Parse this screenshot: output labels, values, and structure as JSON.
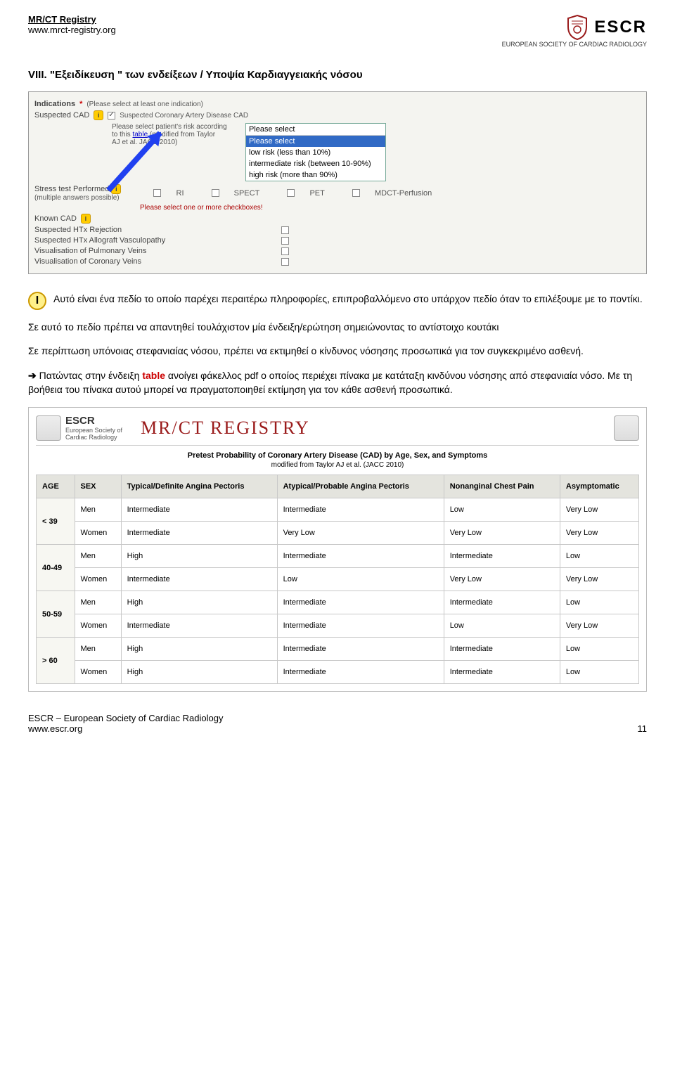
{
  "header": {
    "title": "MR/CT Registry",
    "url": "www.mrct-registry.org",
    "logo_text": "ESCR",
    "logo_sub": "EUROPEAN SOCIETY OF CARDIAC RADIOLOGY"
  },
  "section": {
    "number": "VIII.",
    "title": "\"Εξειδίκευση \" των ενδείξεων / Υποψία Καρδιαγγειακής νόσου"
  },
  "form": {
    "indications_label": "Indications",
    "indications_hint": "(Please select at least one indication)",
    "suspected_cad": "Suspected CAD",
    "suspected_cad_desc": "Suspected Coronary Artery Disease CAD",
    "risk_text1": "Please select patient's risk according",
    "risk_text2": "to this table (modified from Taylor",
    "risk_text3": "AJ et al. JACC 2010)",
    "dd_head": "Please select",
    "dd_sel": "Please select",
    "dd_o1": "low risk (less than 10%)",
    "dd_o2": "intermediate risk (between 10-90%)",
    "dd_o3": "high risk (more than 90%)",
    "stress_label": "Stress test Performed",
    "stress_sub": "(multiple answers possible)",
    "stress_warn": "Please select one or more checkboxes!",
    "opt_ri": "RI",
    "opt_spect": "SPECT",
    "opt_pet": "PET",
    "opt_mdct": "MDCT-Perfusion",
    "known_cad": "Known CAD",
    "htx_rej": "Suspected HTx Rejection",
    "htx_vas": "Suspected HTx Allograft Vasculopathy",
    "pulm": "Visualisation of Pulmonary Veins",
    "cor": "Visualisation of Coronary Veins"
  },
  "body": {
    "badge": "I",
    "p1": "Αυτό είναι ένα πεδίο το οποίο παρέχει περαιτέρω πληροφορίες, επιπροβαλλόμενο στο υπάρχον πεδίο όταν το επιλέξουμε με το ποντίκι.",
    "p2": "Σε αυτό το πεδίο πρέπει να απαντηθεί τουλάχιστον μία ένδειξη/ερώτηση σημειώνοντας το αντίστοιχο κουτάκι",
    "p3": "Σε περίπτωση υπόνοιας στεφανιαίας νόσου, πρέπει να εκτιμηθεί ο κίνδυνος νόσησης προσωπικά για τον συγκεκριμένο ασθενή.",
    "p4a": "Πατώντας στην ένδειξη",
    "p4b": "table",
    "p4c": "ανοίγει φάκελλος pdf ο οποίος περιέχει πίνακα με κατάταξη κινδύνου νόσησης από στεφανιαία νόσο. Με τη βοήθεια του πίνακα αυτού μπορεί να πραγματοποιηθεί εκτίμηση για τον κάθε ασθενή προσωπικά."
  },
  "table2": {
    "brand": "ESCR",
    "brand_sub1": "European Society of",
    "brand_sub2": "Cardiac Radiology",
    "banner": "MR/CT REGISTRY",
    "title": "Pretest Probability of Coronary Artery Disease (CAD) by Age, Sex, and Symptoms",
    "sub": "modified from Taylor AJ et al. (JACC 2010)",
    "cols": [
      "AGE",
      "SEX",
      "Typical/Definite Angina Pectoris",
      "Atypical/Probable Angina Pectoris",
      "Nonanginal Chest Pain",
      "Asymptomatic"
    ],
    "ages": [
      "< 39",
      "40-49",
      "50-59",
      "> 60"
    ],
    "rows": [
      [
        "Men",
        "Intermediate",
        "Intermediate",
        "Low",
        "Very Low"
      ],
      [
        "Women",
        "Intermediate",
        "Very Low",
        "Very Low",
        "Very Low"
      ],
      [
        "Men",
        "High",
        "Intermediate",
        "Intermediate",
        "Low"
      ],
      [
        "Women",
        "Intermediate",
        "Low",
        "Very Low",
        "Very Low"
      ],
      [
        "Men",
        "High",
        "Intermediate",
        "Intermediate",
        "Low"
      ],
      [
        "Women",
        "Intermediate",
        "Intermediate",
        "Low",
        "Very Low"
      ],
      [
        "Men",
        "High",
        "Intermediate",
        "Intermediate",
        "Low"
      ],
      [
        "Women",
        "High",
        "Intermediate",
        "Intermediate",
        "Low"
      ]
    ]
  },
  "footer": {
    "org": "ESCR – European Society of Cardiac Radiology",
    "url": "www.escr.org",
    "page": "11"
  }
}
